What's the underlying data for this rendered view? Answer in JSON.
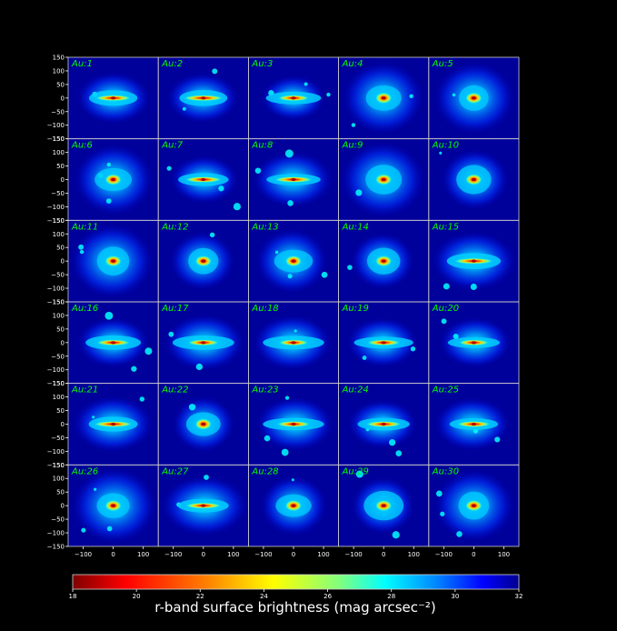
{
  "chart_data": {
    "type": "heatmap",
    "description_grid": "6x5",
    "panel_labels": [
      "Au:1",
      "Au:2",
      "Au:3",
      "Au:4",
      "Au:5",
      "Au:6",
      "Au:7",
      "Au:8",
      "Au:9",
      "Au:10",
      "Au:11",
      "Au:12",
      "Au:13",
      "Au:14",
      "Au:15",
      "Au:16",
      "Au:17",
      "Au:18",
      "Au:19",
      "Au:20",
      "Au:21",
      "Au:22",
      "Au:23",
      "Au:24",
      "Au:25",
      "Au:26",
      "Au:27",
      "Au:28",
      "Au:29",
      "Au:30"
    ],
    "panel_types": [
      "edge",
      "edge",
      "edge",
      "face",
      "face",
      "face",
      "edge",
      "edge",
      "face",
      "face",
      "face",
      "face",
      "face",
      "face",
      "edge",
      "edge",
      "edge",
      "edge",
      "edge",
      "edge",
      "edge",
      "face",
      "edge",
      "edge",
      "edge",
      "face",
      "edge",
      "face",
      "face",
      "face"
    ],
    "xlim": [
      -150,
      150
    ],
    "ylim": [
      -150,
      150
    ],
    "x_ticks": [
      -100,
      0,
      100
    ],
    "y_ticks": [
      150,
      100,
      50,
      0,
      -50,
      -100,
      -150
    ],
    "colorbar": {
      "min": 18,
      "max": 32,
      "ticks": [
        18,
        20,
        22,
        24,
        26,
        28,
        30,
        32
      ],
      "label": "r-band surface brightness (mag arcsec⁻²)",
      "colormap": "jet_r"
    },
    "label_color": "#00ff00"
  }
}
